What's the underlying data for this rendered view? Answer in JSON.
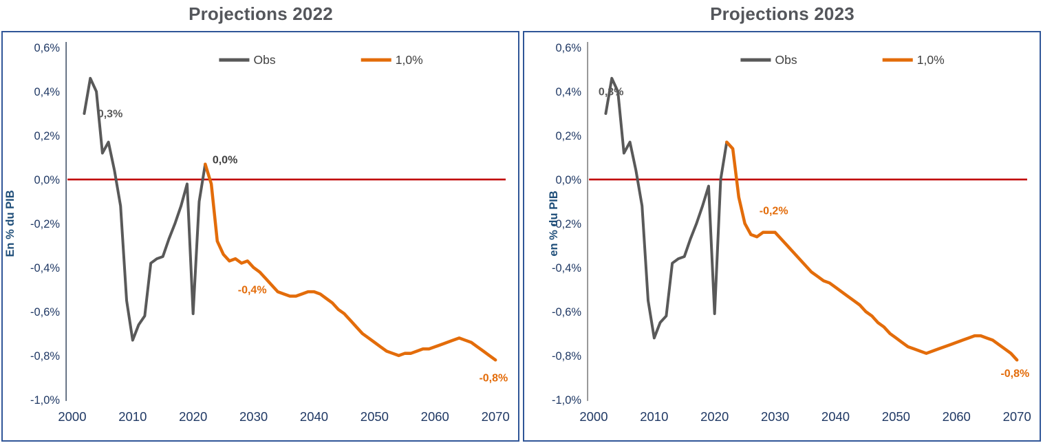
{
  "frame_color": "#2F5597",
  "title_color": "#54565B",
  "chart_data": [
    {
      "type": "line",
      "title": "Projections 2022",
      "ylabel": "En % du PIB",
      "xlim": [
        1999,
        2071
      ],
      "ylim": [
        -1.0,
        0.6
      ],
      "x_ticks": [
        2000,
        2010,
        2020,
        2030,
        2040,
        2050,
        2060,
        2070
      ],
      "y_ticks": [
        0.6,
        0.4,
        0.2,
        0.0,
        -0.2,
        -0.4,
        -0.6,
        -0.8,
        -1.0
      ],
      "y_tick_labels": [
        "0,6%",
        "0,4%",
        "0,2%",
        "0,0%",
        "-0,2%",
        "-0,4%",
        "-0,6%",
        "-0,8%",
        "-1,0%"
      ],
      "tick_color": "#1F3864",
      "ylabel_color": "#1F4E79",
      "ylabel_x": 16,
      "axis_color": "#44546A",
      "zero_line_color": "#C00000",
      "grid": false,
      "legend_position": "top",
      "series": [
        {
          "name": "Obs",
          "color": "#595959",
          "width": 4,
          "points": [
            [
              2002,
              0.3
            ],
            [
              2003,
              0.46
            ],
            [
              2004,
              0.4
            ],
            [
              2005,
              0.12
            ],
            [
              2006,
              0.17
            ],
            [
              2007,
              0.04
            ],
            [
              2008,
              -0.12
            ],
            [
              2009,
              -0.55
            ],
            [
              2010,
              -0.73
            ],
            [
              2011,
              -0.66
            ],
            [
              2012,
              -0.62
            ],
            [
              2013,
              -0.38
            ],
            [
              2014,
              -0.36
            ],
            [
              2015,
              -0.35
            ],
            [
              2016,
              -0.27
            ],
            [
              2017,
              -0.2
            ],
            [
              2018,
              -0.12
            ],
            [
              2019,
              -0.02
            ],
            [
              2020,
              -0.61
            ],
            [
              2021,
              -0.1
            ],
            [
              2022,
              0.07
            ]
          ]
        },
        {
          "name": "1,0%",
          "color": "#E36C0A",
          "width": 4.5,
          "points": [
            [
              2022,
              0.07
            ],
            [
              2023,
              -0.02
            ],
            [
              2024,
              -0.28
            ],
            [
              2025,
              -0.34
            ],
            [
              2026,
              -0.37
            ],
            [
              2027,
              -0.36
            ],
            [
              2028,
              -0.38
            ],
            [
              2029,
              -0.37
            ],
            [
              2030,
              -0.4
            ],
            [
              2031,
              -0.42
            ],
            [
              2032,
              -0.45
            ],
            [
              2033,
              -0.48
            ],
            [
              2034,
              -0.51
            ],
            [
              2035,
              -0.52
            ],
            [
              2036,
              -0.53
            ],
            [
              2037,
              -0.53
            ],
            [
              2038,
              -0.52
            ],
            [
              2039,
              -0.51
            ],
            [
              2040,
              -0.51
            ],
            [
              2041,
              -0.52
            ],
            [
              2042,
              -0.54
            ],
            [
              2043,
              -0.56
            ],
            [
              2044,
              -0.59
            ],
            [
              2045,
              -0.61
            ],
            [
              2046,
              -0.64
            ],
            [
              2047,
              -0.67
            ],
            [
              2048,
              -0.7
            ],
            [
              2049,
              -0.72
            ],
            [
              2050,
              -0.74
            ],
            [
              2051,
              -0.76
            ],
            [
              2052,
              -0.78
            ],
            [
              2053,
              -0.79
            ],
            [
              2054,
              -0.8
            ],
            [
              2055,
              -0.79
            ],
            [
              2056,
              -0.79
            ],
            [
              2057,
              -0.78
            ],
            [
              2058,
              -0.77
            ],
            [
              2059,
              -0.77
            ],
            [
              2060,
              -0.76
            ],
            [
              2061,
              -0.75
            ],
            [
              2062,
              -0.74
            ],
            [
              2063,
              -0.73
            ],
            [
              2064,
              -0.72
            ],
            [
              2065,
              -0.73
            ],
            [
              2066,
              -0.74
            ],
            [
              2067,
              -0.76
            ],
            [
              2068,
              -0.78
            ],
            [
              2069,
              -0.8
            ],
            [
              2070,
              -0.82
            ]
          ]
        }
      ],
      "annotations": [
        {
          "text": "0,3%",
          "x": 2004.2,
          "y": 0.3,
          "color": "#595959"
        },
        {
          "text": "0,0%",
          "x": 2023.2,
          "y": 0.09,
          "color": "#404040"
        },
        {
          "text": "-0,4%",
          "x": 2027.4,
          "y": -0.5,
          "color": "#E36C0A"
        },
        {
          "text": "-0,8%",
          "x": 2067.3,
          "y": -0.9,
          "color": "#E36C0A"
        }
      ]
    },
    {
      "type": "line",
      "title": "Projections 2023",
      "ylabel": "en % du PIB",
      "xlim": [
        1999,
        2071
      ],
      "ylim": [
        -1.0,
        0.6
      ],
      "x_ticks": [
        2000,
        2010,
        2020,
        2030,
        2040,
        2050,
        2060,
        2070
      ],
      "y_ticks": [
        0.6,
        0.4,
        0.2,
        0.0,
        -0.2,
        -0.4,
        -0.6,
        -0.8,
        -1.0
      ],
      "y_tick_labels": [
        "0,6%",
        "0,4%",
        "0,2%",
        "0,0%",
        "-0,2%",
        "-0,4%",
        "-0,6%",
        "-0,8%",
        "-1,0%"
      ],
      "tick_color": "#1F3864",
      "ylabel_color": "#1F4E79",
      "ylabel_x": 48,
      "axis_color": "#808080",
      "zero_line_color": "#C00000",
      "grid": false,
      "legend_position": "top",
      "series": [
        {
          "name": "Obs",
          "color": "#595959",
          "width": 4,
          "points": [
            [
              2002,
              0.3
            ],
            [
              2003,
              0.46
            ],
            [
              2004,
              0.4
            ],
            [
              2005,
              0.12
            ],
            [
              2006,
              0.17
            ],
            [
              2007,
              0.04
            ],
            [
              2008,
              -0.12
            ],
            [
              2009,
              -0.55
            ],
            [
              2010,
              -0.72
            ],
            [
              2011,
              -0.65
            ],
            [
              2012,
              -0.62
            ],
            [
              2013,
              -0.38
            ],
            [
              2014,
              -0.36
            ],
            [
              2015,
              -0.35
            ],
            [
              2016,
              -0.27
            ],
            [
              2017,
              -0.2
            ],
            [
              2018,
              -0.12
            ],
            [
              2019,
              -0.03
            ],
            [
              2020,
              -0.61
            ],
            [
              2021,
              0.0
            ],
            [
              2022,
              0.17
            ]
          ]
        },
        {
          "name": "1,0%",
          "color": "#E36C0A",
          "width": 4.5,
          "points": [
            [
              2022,
              0.17
            ],
            [
              2023,
              0.14
            ],
            [
              2024,
              -0.08
            ],
            [
              2025,
              -0.2
            ],
            [
              2026,
              -0.25
            ],
            [
              2027,
              -0.26
            ],
            [
              2028,
              -0.24
            ],
            [
              2029,
              -0.24
            ],
            [
              2030,
              -0.24
            ],
            [
              2031,
              -0.27
            ],
            [
              2032,
              -0.3
            ],
            [
              2033,
              -0.33
            ],
            [
              2034,
              -0.36
            ],
            [
              2035,
              -0.39
            ],
            [
              2036,
              -0.42
            ],
            [
              2037,
              -0.44
            ],
            [
              2038,
              -0.46
            ],
            [
              2039,
              -0.47
            ],
            [
              2040,
              -0.49
            ],
            [
              2041,
              -0.51
            ],
            [
              2042,
              -0.53
            ],
            [
              2043,
              -0.55
            ],
            [
              2044,
              -0.57
            ],
            [
              2045,
              -0.6
            ],
            [
              2046,
              -0.62
            ],
            [
              2047,
              -0.65
            ],
            [
              2048,
              -0.67
            ],
            [
              2049,
              -0.7
            ],
            [
              2050,
              -0.72
            ],
            [
              2051,
              -0.74
            ],
            [
              2052,
              -0.76
            ],
            [
              2053,
              -0.77
            ],
            [
              2054,
              -0.78
            ],
            [
              2055,
              -0.79
            ],
            [
              2056,
              -0.78
            ],
            [
              2057,
              -0.77
            ],
            [
              2058,
              -0.76
            ],
            [
              2059,
              -0.75
            ],
            [
              2060,
              -0.74
            ],
            [
              2061,
              -0.73
            ],
            [
              2062,
              -0.72
            ],
            [
              2063,
              -0.71
            ],
            [
              2064,
              -0.71
            ],
            [
              2065,
              -0.72
            ],
            [
              2066,
              -0.73
            ],
            [
              2067,
              -0.75
            ],
            [
              2068,
              -0.77
            ],
            [
              2069,
              -0.79
            ],
            [
              2070,
              -0.82
            ]
          ]
        }
      ],
      "annotations": [
        {
          "text": "0,3%",
          "x": 2000.8,
          "y": 0.4,
          "color": "#595959"
        },
        {
          "text": "-0,2%",
          "x": 2027.4,
          "y": -0.14,
          "color": "#E36C0A"
        },
        {
          "text": "-0,8%",
          "x": 2067.3,
          "y": -0.88,
          "color": "#E36C0A"
        }
      ]
    }
  ]
}
